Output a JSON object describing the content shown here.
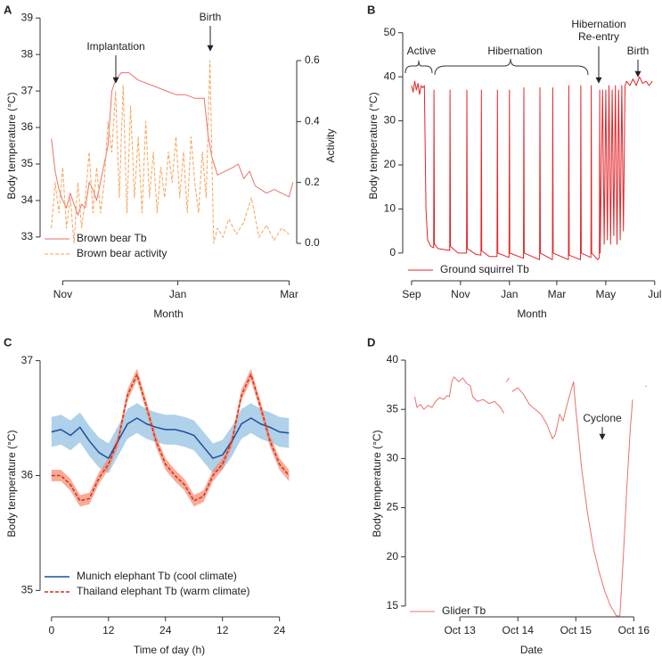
{
  "chart_data": [
    {
      "type": "line",
      "panel": "A",
      "ylabel": "Body temperature (°C)",
      "y2label": "Activity",
      "xlabel": "Month",
      "xlim": [
        -12,
        124
      ],
      "xticks": [
        {
          "value": 0,
          "label": "Nov"
        },
        {
          "value": 61,
          "label": "Jan"
        },
        {
          "value": 120,
          "label": "Mar"
        }
      ],
      "ylim": [
        31.8,
        39.2
      ],
      "yticks": [
        33,
        34,
        35,
        36,
        37,
        38,
        39
      ],
      "y2lim": [
        -0.123,
        0.764
      ],
      "y2ticks": [
        {
          "value": 0,
          "label": "0.0"
        },
        {
          "value": 0.2,
          "label": "0.2"
        },
        {
          "value": 0.4,
          "label": "0.4"
        },
        {
          "value": 0.6,
          "label": "0.6"
        }
      ],
      "legend": "bottom-left",
      "annotations": [
        "Implantation",
        "Birth"
      ],
      "series": [
        {
          "name": "Brown bear Tb",
          "color": "#e8736c",
          "dash": false,
          "x": [
            -6,
            -4,
            -2,
            0,
            2,
            4,
            6,
            8,
            10,
            12,
            14,
            16,
            18,
            24,
            26,
            28,
            31,
            35,
            40,
            45,
            50,
            55,
            60,
            65,
            70,
            75,
            77,
            79,
            82,
            86,
            90,
            93,
            96,
            99,
            102,
            105,
            108,
            112,
            116,
            120,
            122
          ],
          "values": [
            35.7,
            34.8,
            34.3,
            34.0,
            33.8,
            34.2,
            33.9,
            33.6,
            33.9,
            33.8,
            34.5,
            34.3,
            34.0,
            35.5,
            37.0,
            37.3,
            37.5,
            37.5,
            37.3,
            37.2,
            37.1,
            37.0,
            36.9,
            36.9,
            36.8,
            36.8,
            35.8,
            35.2,
            34.7,
            34.8,
            34.9,
            35.0,
            34.6,
            34.8,
            34.4,
            34.3,
            34.2,
            34.3,
            34.2,
            34.1,
            34.5
          ]
        },
        {
          "name": "Brown bear activity",
          "color": "#f5a55a",
          "dash": true,
          "axis": "y2",
          "x": [
            -6,
            -4,
            -2,
            0,
            2,
            4,
            6,
            8,
            10,
            12,
            14,
            16,
            18,
            20,
            22,
            24,
            26,
            28,
            30,
            32,
            34,
            36,
            38,
            40,
            42,
            44,
            46,
            48,
            50,
            52,
            54,
            56,
            58,
            60,
            62,
            64,
            66,
            68,
            70,
            72,
            74,
            76,
            78,
            80,
            82,
            85,
            88,
            92,
            96,
            100,
            104,
            108,
            112,
            116,
            120
          ],
          "values": [
            0.05,
            0.2,
            0.1,
            0.25,
            0.05,
            0.15,
            0.0,
            0.2,
            0.05,
            0.15,
            0.3,
            0.1,
            0.25,
            0.1,
            0.2,
            0.4,
            0.3,
            0.5,
            0.15,
            0.52,
            0.1,
            0.45,
            0.15,
            0.35,
            0.1,
            0.4,
            0.15,
            0.3,
            0.1,
            0.25,
            0.15,
            0.3,
            0.2,
            0.35,
            0.15,
            0.3,
            0.1,
            0.35,
            0.2,
            0.1,
            0.3,
            0.15,
            0.6,
            0.0,
            0.05,
            0.02,
            0.08,
            0.03,
            0.07,
            0.15,
            0.02,
            0.06,
            0.01,
            0.05,
            0.03
          ]
        }
      ]
    },
    {
      "type": "line",
      "panel": "B",
      "ylabel": "Body temperature (°C)",
      "xlabel": "Month",
      "xlim": [
        -11,
        311
      ],
      "xticks": [
        {
          "value": 0,
          "label": "Sep"
        },
        {
          "value": 61,
          "label": "Nov"
        },
        {
          "value": 122,
          "label": "Jan"
        },
        {
          "value": 181,
          "label": "Mar"
        },
        {
          "value": 242,
          "label": "May"
        },
        {
          "value": 303,
          "label": "Jul"
        }
      ],
      "ylim": [
        -6.3,
        55
      ],
      "yticks": [
        0,
        10,
        20,
        30,
        40,
        50
      ],
      "legend": "bottom-left",
      "annotations": [
        "Active",
        "Hibernation",
        [
          "Hibernation",
          "Re-entry"
        ],
        "Birth"
      ],
      "series": [
        {
          "name": "Ground squirrel Tb",
          "color": "#e3262b",
          "dash": false,
          "x": [
            0,
            2,
            4,
            6,
            8,
            10,
            12,
            14,
            16,
            18,
            20,
            24,
            27.5,
            28,
            28.5,
            33,
            40,
            47.5,
            48,
            48.5,
            58,
            68.5,
            69,
            69.5,
            80,
            86.5,
            87,
            87.5,
            97,
            106.5,
            107,
            107.5,
            121.5,
            122,
            122.5,
            139.5,
            140,
            140.5,
            159.5,
            160,
            160.5,
            175.5,
            176,
            176.5,
            195.5,
            196,
            196.5,
            210.5,
            211,
            211.5,
            223.5,
            224,
            224.5,
            232,
            234,
            234.5,
            235,
            238,
            240,
            242,
            244,
            246,
            248,
            250,
            252,
            254,
            256,
            258,
            260,
            262,
            264,
            266,
            268,
            272,
            276,
            280,
            284,
            288,
            292,
            296,
            300
          ],
          "values": [
            38,
            36.5,
            39,
            37,
            38.5,
            36,
            38,
            37.5,
            38,
            10,
            3,
            1.5,
            1.2,
            37,
            2,
            1,
            0.8,
            0.6,
            37,
            1.5,
            0,
            0,
            37,
            1,
            -0.3,
            -0.5,
            37,
            0.5,
            -0.8,
            -0.8,
            37,
            0,
            -1,
            37,
            0,
            -1.2,
            37.5,
            0,
            -1.5,
            37.5,
            0,
            -1.5,
            37.5,
            0,
            -1.5,
            38,
            -0.5,
            -1.5,
            38,
            0,
            -1,
            38,
            0,
            -1.5,
            -1,
            37,
            0,
            37,
            2,
            37,
            3,
            38,
            2,
            37,
            4,
            38,
            2,
            37,
            3,
            38,
            5,
            38,
            39,
            38,
            39.5,
            38,
            40,
            38.5,
            39,
            38,
            39
          ]
        }
      ]
    },
    {
      "type": "line",
      "panel": "C",
      "ylabel": "Body temperature (°C)",
      "xlabel": "Time of day (h)",
      "xlim": [
        -2.4,
        52
      ],
      "xticks": [
        0,
        12,
        24,
        {
          "value": 36,
          "label": "12"
        },
        {
          "value": 48,
          "label": "24"
        }
      ],
      "ylim": [
        34.77,
        37.09
      ],
      "yticks": [
        35,
        36,
        37
      ],
      "legend": "bottom-left",
      "x": [
        0,
        2,
        4,
        6,
        8,
        10,
        12,
        14,
        16,
        18,
        20,
        22,
        24,
        26,
        28,
        30,
        32,
        34,
        36,
        38,
        40,
        42,
        44,
        46,
        48,
        50
      ],
      "series": [
        {
          "name": "Munich elephant Tb (cool climate)",
          "color": "#1f4e9c",
          "band_color": "#8dbde0",
          "dash": false,
          "values": [
            36.38,
            36.4,
            36.35,
            36.42,
            36.3,
            36.2,
            36.15,
            36.3,
            36.45,
            36.5,
            36.45,
            36.42,
            36.4,
            36.4,
            36.38,
            36.35,
            36.25,
            36.15,
            36.18,
            36.3,
            36.45,
            36.5,
            36.45,
            36.42,
            36.38,
            36.37
          ],
          "errors": [
            0.13,
            0.13,
            0.13,
            0.13,
            0.13,
            0.13,
            0.13,
            0.13,
            0.13,
            0.13,
            0.13,
            0.13,
            0.13,
            0.13,
            0.13,
            0.13,
            0.13,
            0.13,
            0.13,
            0.13,
            0.13,
            0.13,
            0.13,
            0.13,
            0.13,
            0.13
          ]
        },
        {
          "name": "Thailand elephant Tb (warm climate)",
          "color": "#d7301f",
          "band_color": "#f7876a",
          "dash": true,
          "values": [
            36.0,
            36.0,
            35.92,
            35.78,
            35.8,
            35.98,
            36.1,
            36.3,
            36.7,
            36.88,
            36.6,
            36.3,
            36.1,
            36.0,
            35.92,
            35.78,
            35.82,
            36.0,
            36.1,
            36.3,
            36.7,
            36.88,
            36.6,
            36.3,
            36.1,
            36.0
          ],
          "errors": [
            0.05,
            0.05,
            0.05,
            0.05,
            0.05,
            0.05,
            0.05,
            0.05,
            0.05,
            0.05,
            0.05,
            0.05,
            0.05,
            0.05,
            0.05,
            0.05,
            0.05,
            0.05,
            0.05,
            0.05,
            0.05,
            0.05,
            0.05,
            0.05,
            0.05,
            0.05
          ]
        }
      ]
    },
    {
      "type": "line",
      "panel": "D",
      "ylabel": "Body temperature (°C)",
      "xlabel": "Date",
      "xlim": [
        -0.94,
        3.41
      ],
      "xticks": [
        {
          "value": 0,
          "label": "Oct 13"
        },
        {
          "value": 1,
          "label": "Oct 14"
        },
        {
          "value": 2,
          "label": "Oct 15"
        },
        {
          "value": 3,
          "label": "Oct 16"
        }
      ],
      "ylim": [
        13.9,
        41.0
      ],
      "yticks": [
        15,
        20,
        25,
        30,
        35,
        40
      ],
      "legend": "bottom-left",
      "annotations": [
        "Cyclone"
      ],
      "series": [
        {
          "name": "Glider Tb",
          "color": "#e8736c",
          "dash": false,
          "x": [
            -0.78,
            -0.74,
            -0.68,
            -0.62,
            -0.55,
            -0.48,
            -0.42,
            -0.35,
            -0.28,
            -0.22,
            -0.18,
            -0.14,
            -0.1,
            -0.02,
            0.05,
            0.12,
            0.18,
            0.22,
            0.3,
            0.4,
            0.5,
            0.6,
            0.7,
            0.76,
            0.78,
            0.8,
            0.85,
            0.88,
            0.9,
            1.0,
            1.1,
            1.2,
            1.3,
            1.4,
            1.5,
            1.6,
            1.65,
            1.72,
            1.78,
            1.85,
            1.92,
            1.96,
            2.0,
            2.1,
            2.2,
            2.3,
            2.4,
            2.5,
            2.6,
            2.7,
            2.76,
            2.82,
            2.88,
            2.94,
            2.98,
            3.1,
            3.2,
            3.22
          ],
          "values": [
            36.3,
            35.2,
            35.5,
            35.0,
            35.4,
            35.2,
            35.8,
            36.2,
            36.0,
            36.4,
            36.3,
            37.8,
            38.3,
            37.8,
            38.2,
            37.6,
            37.4,
            36.3,
            35.8,
            36.0,
            35.6,
            35.8,
            35.2,
            34.6,
            null,
            37.8,
            38.2,
            null,
            36.8,
            37.2,
            36.5,
            35.5,
            35.0,
            34.5,
            33.5,
            32.0,
            32.5,
            34.5,
            33.8,
            35.5,
            37.0,
            37.8,
            35.0,
            29.0,
            24.5,
            21.0,
            18.5,
            16.5,
            15.0,
            14.0,
            14.0,
            20.0,
            27.0,
            33.0,
            36.0,
            null,
            37.3,
            37.4
          ]
        }
      ]
    }
  ]
}
